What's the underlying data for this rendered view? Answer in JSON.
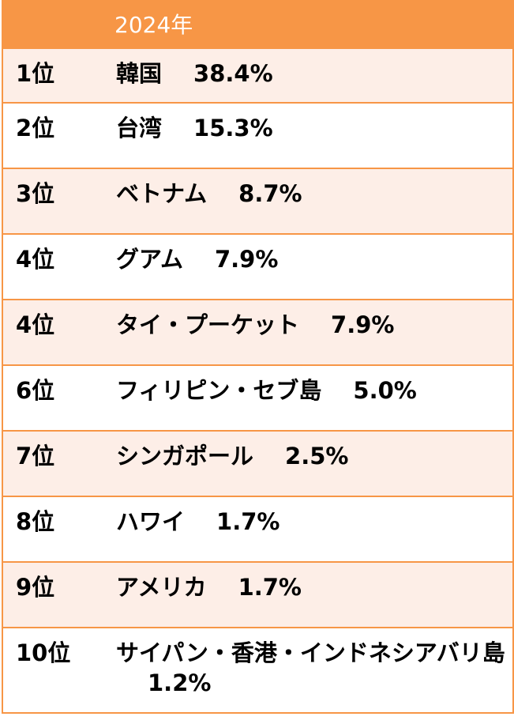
{
  "header": {
    "year": "2024年"
  },
  "rows": [
    {
      "rank": "1位",
      "destination": "韓国",
      "share": "38.4%"
    },
    {
      "rank": "2位",
      "destination": "台湾",
      "share": "15.3%"
    },
    {
      "rank": "3位",
      "destination": "ベトナム",
      "share": "8.7%"
    },
    {
      "rank": "4位",
      "destination": "グアム",
      "share": "7.9%"
    },
    {
      "rank": "4位",
      "destination": "タイ・プーケット",
      "share": "7.9%"
    },
    {
      "rank": "6位",
      "destination": "フィリピン・セブ島",
      "share": "5.0%"
    },
    {
      "rank": "7位",
      "destination": "シンガポール",
      "share": "2.5%"
    },
    {
      "rank": "8位",
      "destination": "ハワイ",
      "share": "1.7%"
    },
    {
      "rank": "9位",
      "destination": "アメリカ",
      "share": "1.7%"
    },
    {
      "rank": "10位",
      "destination": "サイパン・香港・インドネシアバリ島",
      "share": "1.2%"
    }
  ],
  "colors": {
    "header_bg": "#f79646",
    "stripe_bg": "#fdeee7",
    "border": "#f79646"
  }
}
